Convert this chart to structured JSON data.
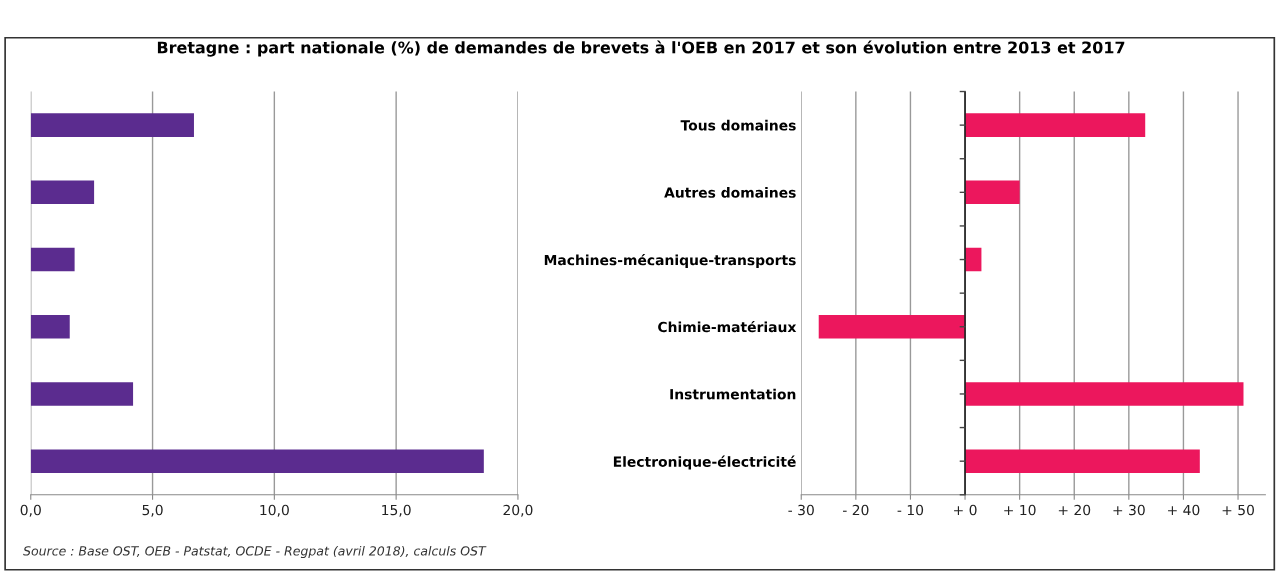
{
  "chart_data": [
    {
      "type": "bar",
      "orientation": "horizontal",
      "title": "Bretagne : part nationale (%) de demandes de brevets à l'OEB en 2017 et son évolution entre 2013 et 2017",
      "categories": [
        null,
        null,
        null,
        null,
        null,
        null
      ],
      "values": [
        6.7,
        2.6,
        1.8,
        1.6,
        4.2,
        18.6
      ],
      "color": "#5b2c8f",
      "xlim": [
        0,
        20
      ],
      "xticks": [
        {
          "value": 0,
          "label": "0,0"
        },
        {
          "value": 5,
          "label": "5,0"
        },
        {
          "value": 10,
          "label": "10,0"
        },
        {
          "value": 15,
          "label": "15,0"
        },
        {
          "value": 20,
          "label": "20,0"
        }
      ],
      "grid": "x",
      "tick_labels": "x",
      "annotations": [
        "Source : Base OST, OEB - Patstat, OCDE - Regpat (avril 2018), calculs OST"
      ]
    },
    {
      "type": "bar",
      "orientation": "horizontal",
      "categories": [
        "Tous domaines",
        "Autres domaines",
        "Machines-mécanique-transports",
        "Chimie-matériaux",
        "Instrumentation",
        "Electronique-électricité"
      ],
      "values": [
        33.0,
        10.0,
        3.0,
        -26.8,
        51.0,
        43.0
      ],
      "color": "#ec175d",
      "xlim": [
        -30,
        55
      ],
      "xticks": [
        {
          "value": -30,
          "label": "- 30"
        },
        {
          "value": -20,
          "label": "- 20"
        },
        {
          "value": -10,
          "label": "- 10"
        },
        {
          "value": 0,
          "label": "+ 0"
        },
        {
          "value": 10,
          "label": "+ 10"
        },
        {
          "value": 20,
          "label": "+ 20"
        },
        {
          "value": 30,
          "label": "+ 30"
        },
        {
          "value": 40,
          "label": "+ 40"
        },
        {
          "value": 50,
          "label": "+ 50"
        }
      ],
      "grid": "x"
    }
  ]
}
